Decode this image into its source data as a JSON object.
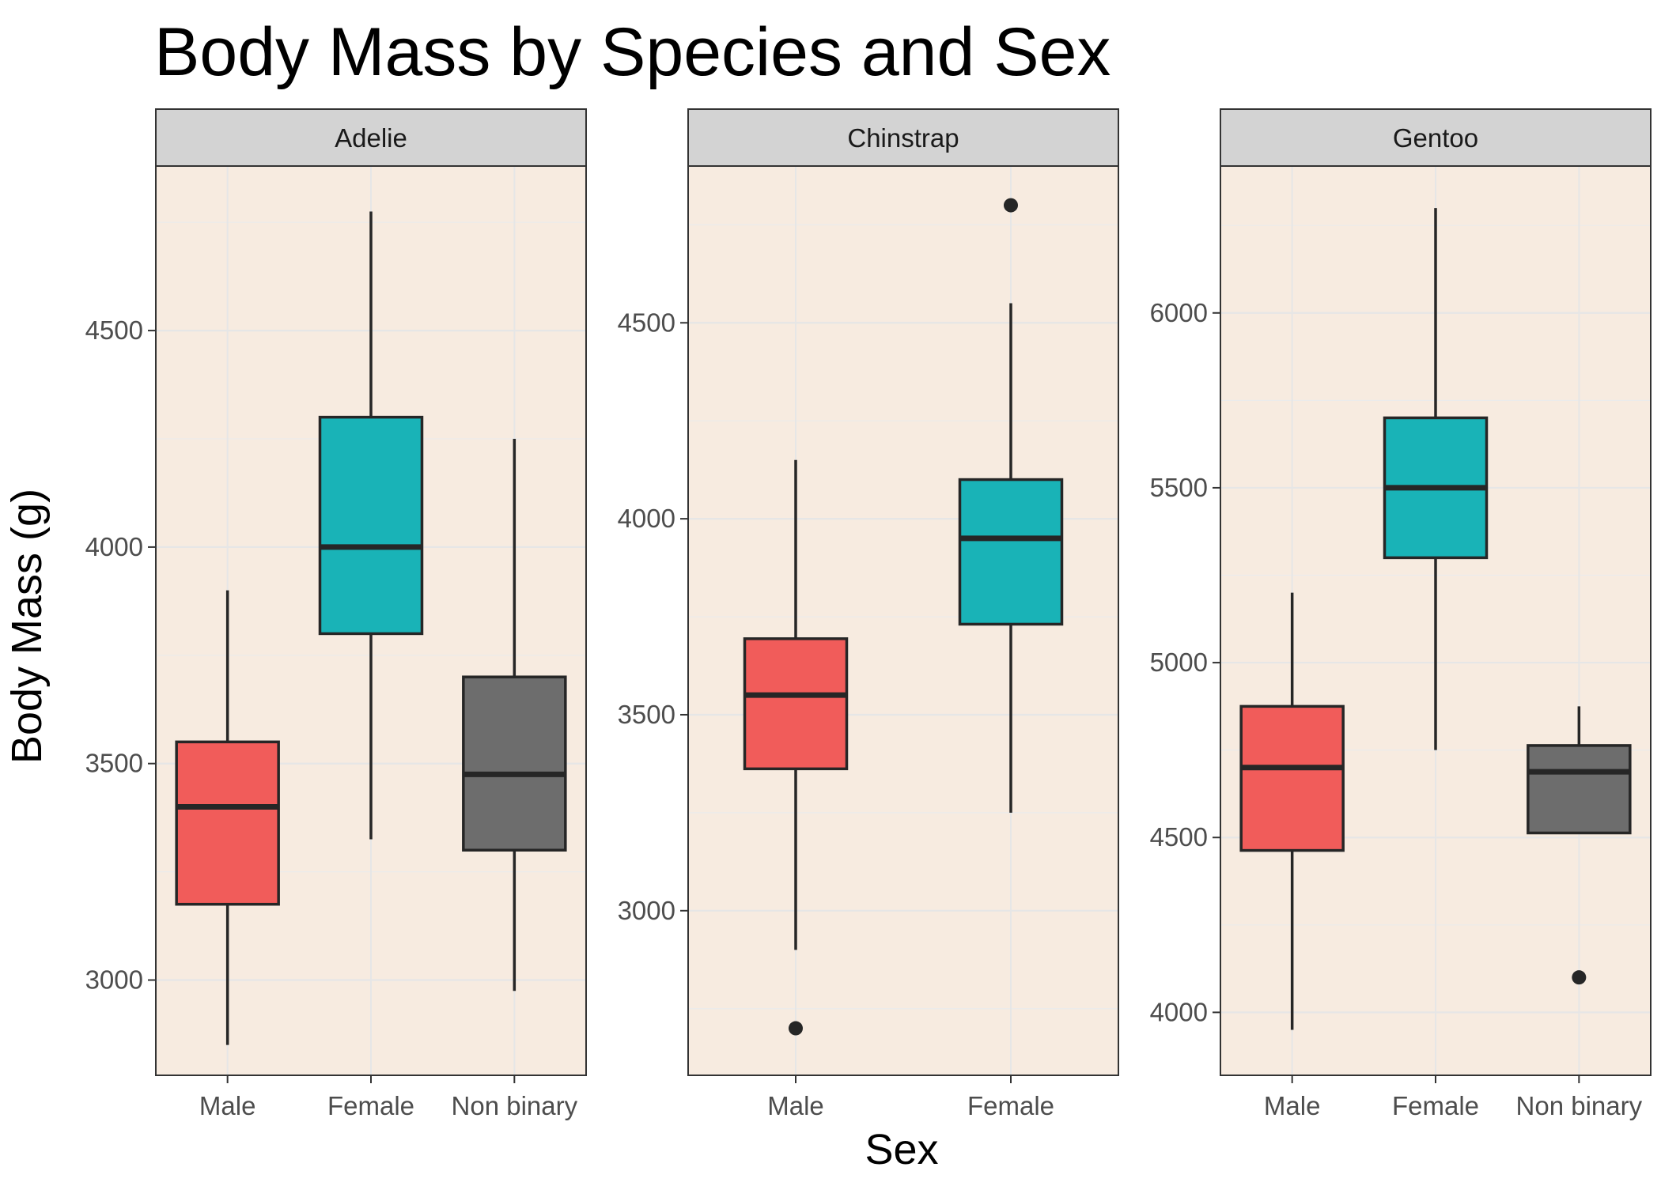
{
  "chart_data": {
    "type": "boxplot",
    "title": "Body Mass by Species and Sex",
    "xlabel": "Sex",
    "ylabel": "Body Mass (g)",
    "panel_background": "#f7ebe0",
    "strip_background": "#d3d3d3",
    "grid": true,
    "legend": "none",
    "group_colors": {
      "Male": "#f15c5a",
      "Female": "#19b3b7",
      "Non binary": "#6d6d6d"
    },
    "panels": [
      {
        "facet": "Adelie",
        "ylim": [
          2780,
          4880
        ],
        "yticks": [
          3000,
          3500,
          4000,
          4500
        ],
        "boxes": [
          {
            "sex": "Male",
            "whisker_low": 2850,
            "q1": 3175,
            "median": 3400,
            "q3": 3550,
            "whisker_high": 3900,
            "outliers": []
          },
          {
            "sex": "Female",
            "whisker_low": 3325,
            "q1": 3800,
            "median": 4000,
            "q3": 4300,
            "whisker_high": 4775,
            "outliers": []
          },
          {
            "sex": "Non binary",
            "whisker_low": 2975,
            "q1": 3300,
            "median": 3475,
            "q3": 3700,
            "whisker_high": 4250,
            "outliers": []
          }
        ]
      },
      {
        "facet": "Chinstrap",
        "ylim": [
          2580,
          4900
        ],
        "yticks": [
          3000,
          3500,
          4000,
          4500
        ],
        "boxes": [
          {
            "sex": "Male",
            "whisker_low": 2900,
            "q1": 3362,
            "median": 3550,
            "q3": 3694,
            "whisker_high": 4150,
            "outliers": [
              2700
            ]
          },
          {
            "sex": "Female",
            "whisker_low": 3250,
            "q1": 3731,
            "median": 3950,
            "q3": 4100,
            "whisker_high": 4550,
            "outliers": [
              4800
            ]
          }
        ]
      },
      {
        "facet": "Gentoo",
        "ylim": [
          3820,
          6420
        ],
        "yticks": [
          4000,
          4500,
          5000,
          5500,
          6000
        ],
        "boxes": [
          {
            "sex": "Male",
            "whisker_low": 3950,
            "q1": 4463,
            "median": 4700,
            "q3": 4875,
            "whisker_high": 5200,
            "outliers": []
          },
          {
            "sex": "Female",
            "whisker_low": 4750,
            "q1": 5300,
            "median": 5500,
            "q3": 5700,
            "whisker_high": 6300,
            "outliers": []
          },
          {
            "sex": "Non binary",
            "whisker_low": 4513,
            "q1": 4513,
            "median": 4688,
            "q3": 4763,
            "whisker_high": 4875,
            "outliers": [
              4100
            ]
          }
        ]
      }
    ]
  }
}
